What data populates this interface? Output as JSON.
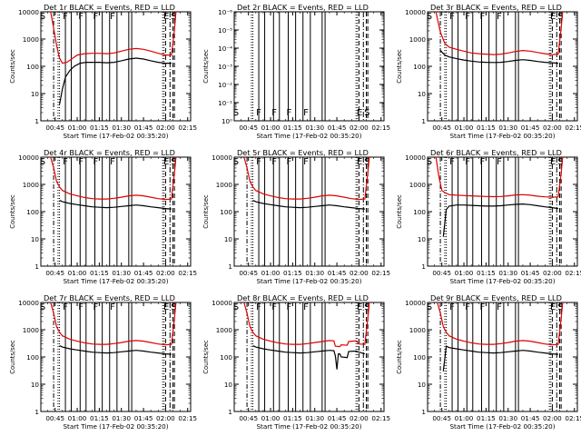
{
  "chart_data": [
    {
      "type": "line",
      "title": "Det 1r  BLACK = Events, RED = LLD",
      "xlabel": "Start Time (17-Feb-02 00:35:20)",
      "ylabel": "Counts/sec",
      "x_ticks": [
        "00:45",
        "01:00",
        "01:15",
        "01:30",
        "01:45",
        "02:00",
        "02:15"
      ],
      "y_ticks": [
        "1",
        "10",
        "100",
        "1000",
        "10000"
      ],
      "ylim": [
        1,
        10000
      ],
      "log_y": true,
      "markers": [
        "S",
        "F",
        "F",
        "F",
        "F",
        "E",
        "S"
      ],
      "series": [
        {
          "color": "#e00000",
          "x": [
            42,
            44,
            46,
            48,
            50,
            53,
            56,
            60,
            65,
            70,
            75,
            80,
            85,
            90,
            95,
            100,
            105,
            110,
            115,
            120,
            124,
            126,
            127
          ],
          "values": [
            10000,
            2500,
            600,
            200,
            130,
            140,
            180,
            260,
            290,
            300,
            300,
            290,
            310,
            360,
            420,
            450,
            420,
            360,
            300,
            260,
            260,
            2000,
            10000
          ]
        },
        {
          "color": "#000000",
          "x": [
            48,
            50,
            52,
            55,
            58,
            62,
            66,
            70,
            75,
            80,
            85,
            90,
            95,
            100,
            105,
            110,
            115,
            120,
            124
          ],
          "values": [
            4,
            15,
            40,
            70,
            100,
            130,
            140,
            140,
            140,
            135,
            140,
            160,
            185,
            200,
            185,
            160,
            140,
            130,
            130
          ]
        }
      ]
    },
    {
      "type": "line",
      "title": "Det 2r  BLACK = Events, RED = LLD",
      "xlabel": "Start Time (17-Feb-02 00:35:20)",
      "ylabel": "Counts/sec",
      "x_ticks": [
        "00:45",
        "01:00",
        "01:15",
        "01:30",
        "01:45",
        "02:00",
        "02:15"
      ],
      "y_ticks": [
        "10⁰",
        "10⁻¹",
        "10⁻²",
        "10⁻³",
        "10⁻⁴",
        "10⁻⁵",
        "10⁻⁶"
      ],
      "ylim": [
        1,
        1e-06
      ],
      "log_y": true,
      "markers": [
        "S",
        "F",
        "F",
        "F",
        "F",
        "E",
        "S"
      ],
      "series": []
    },
    {
      "type": "line",
      "title": "Det 3r  BLACK = Events, RED = LLD",
      "xlabel": "Start Time (17-Feb-02 00:35:20)",
      "ylabel": "Counts/sec",
      "x_ticks": [
        "00:45",
        "01:00",
        "01:15",
        "01:30",
        "01:45",
        "02:00",
        "02:15"
      ],
      "y_ticks": [
        "1",
        "10",
        "100",
        "1000",
        "10000"
      ],
      "ylim": [
        1,
        10000
      ],
      "log_y": true,
      "markers": [
        "S",
        "F",
        "F",
        "F",
        "F",
        "E",
        "S"
      ],
      "series": [
        {
          "color": "#e00000",
          "x": [
            41,
            44,
            47,
            50,
            55,
            60,
            65,
            70,
            75,
            80,
            85,
            90,
            95,
            100,
            105,
            110,
            115,
            120,
            124,
            126,
            127
          ],
          "values": [
            10000,
            1800,
            700,
            500,
            420,
            360,
            310,
            290,
            280,
            270,
            280,
            310,
            350,
            380,
            360,
            320,
            290,
            270,
            280,
            2500,
            10000
          ]
        },
        {
          "color": "#000000",
          "x": [
            44,
            47,
            50,
            55,
            60,
            65,
            70,
            75,
            80,
            85,
            90,
            95,
            100,
            105,
            110,
            115,
            120,
            124
          ],
          "values": [
            380,
            260,
            220,
            190,
            170,
            155,
            145,
            140,
            138,
            140,
            150,
            165,
            175,
            165,
            150,
            140,
            135,
            130
          ]
        }
      ]
    },
    {
      "type": "line",
      "title": "Det 4r  BLACK = Events, RED = LLD",
      "xlabel": "Start Time (17-Feb-02 00:35:20)",
      "ylabel": "Counts/sec",
      "x_ticks": [
        "00:45",
        "01:00",
        "01:15",
        "01:30",
        "01:45",
        "02:00",
        "02:15"
      ],
      "y_ticks": [
        "1",
        "10",
        "100",
        "1000",
        "10000"
      ],
      "ylim": [
        1,
        10000
      ],
      "log_y": true,
      "markers": [
        "S",
        "F",
        "F",
        "F",
        "F",
        "E",
        "S"
      ],
      "series": [
        {
          "color": "#e00000",
          "x": [
            42,
            44,
            46,
            48,
            50,
            55,
            60,
            65,
            70,
            75,
            80,
            85,
            90,
            95,
            100,
            105,
            110,
            115,
            120,
            124,
            126,
            127
          ],
          "values": [
            10000,
            4000,
            1300,
            800,
            600,
            450,
            380,
            330,
            300,
            290,
            290,
            310,
            340,
            380,
            400,
            380,
            340,
            300,
            280,
            290,
            2500,
            10000
          ]
        },
        {
          "color": "#000000",
          "x": [
            48,
            50,
            55,
            60,
            65,
            70,
            75,
            80,
            85,
            90,
            95,
            100,
            105,
            110,
            115,
            120,
            124
          ],
          "values": [
            260,
            230,
            200,
            180,
            165,
            150,
            145,
            140,
            145,
            155,
            165,
            175,
            165,
            150,
            140,
            130,
            125
          ]
        }
      ]
    },
    {
      "type": "line",
      "title": "Det 5r  BLACK = Events, RED = LLD",
      "xlabel": "Start Time (17-Feb-02 00:35:20)",
      "ylabel": "Counts/sec",
      "x_ticks": [
        "00:45",
        "01:00",
        "01:15",
        "01:30",
        "01:45",
        "02:00",
        "02:15"
      ],
      "y_ticks": [
        "1",
        "10",
        "100",
        "1000",
        "10000"
      ],
      "ylim": [
        1,
        10000
      ],
      "log_y": true,
      "markers": [
        "S",
        "F",
        "F",
        "F",
        "F",
        "E",
        "S"
      ],
      "series": [
        {
          "color": "#e00000",
          "x": [
            42,
            44,
            46,
            48,
            50,
            55,
            60,
            65,
            70,
            75,
            80,
            85,
            90,
            95,
            100,
            105,
            110,
            115,
            120,
            124,
            126,
            127
          ],
          "values": [
            10000,
            4000,
            1300,
            800,
            600,
            450,
            380,
            330,
            300,
            290,
            290,
            310,
            340,
            380,
            400,
            380,
            340,
            300,
            280,
            290,
            2500,
            10000
          ]
        },
        {
          "color": "#000000",
          "x": [
            48,
            50,
            55,
            60,
            65,
            70,
            75,
            80,
            85,
            90,
            95,
            100,
            105,
            110,
            115,
            120,
            124
          ],
          "values": [
            260,
            230,
            200,
            180,
            165,
            150,
            145,
            140,
            145,
            155,
            165,
            175,
            165,
            150,
            140,
            130,
            125
          ]
        }
      ]
    },
    {
      "type": "line",
      "title": "Det 6r  BLACK = Events, RED = LLD",
      "xlabel": "Start Time (17-Feb-02 00:35:20)",
      "ylabel": "Counts/sec",
      "x_ticks": [
        "00:45",
        "01:00",
        "01:15",
        "01:30",
        "01:45",
        "02:00",
        "02:15"
      ],
      "y_ticks": [
        "1",
        "10",
        "100",
        "1000",
        "10000"
      ],
      "ylim": [
        1,
        10000
      ],
      "log_y": true,
      "markers": [
        "S",
        "F",
        "F",
        "F",
        "F",
        "E",
        "S"
      ],
      "series": [
        {
          "color": "#e00000",
          "x": [
            41,
            43,
            45,
            47,
            50,
            55,
            60,
            65,
            70,
            75,
            80,
            85,
            90,
            95,
            100,
            105,
            110,
            115,
            120,
            124,
            126,
            127
          ],
          "values": [
            10000,
            2000,
            600,
            500,
            420,
            400,
            390,
            380,
            370,
            360,
            355,
            360,
            380,
            410,
            420,
            400,
            370,
            350,
            340,
            350,
            2500,
            10000
          ]
        },
        {
          "color": "#000000",
          "x": [
            46,
            48,
            50,
            55,
            60,
            65,
            70,
            75,
            80,
            85,
            90,
            95,
            100,
            105,
            110,
            115,
            120,
            124
          ],
          "values": [
            12,
            120,
            160,
            175,
            175,
            170,
            165,
            160,
            160,
            165,
            175,
            185,
            190,
            180,
            165,
            150,
            140,
            130
          ]
        }
      ]
    },
    {
      "type": "line",
      "title": "Det 7r  BLACK = Events, RED = LLD",
      "xlabel": "Start Time (17-Feb-02 00:35:20)",
      "ylabel": "Counts/sec",
      "x_ticks": [
        "00:45",
        "01:00",
        "01:15",
        "01:30",
        "01:45",
        "02:00",
        "02:15"
      ],
      "y_ticks": [
        "1",
        "10",
        "100",
        "1000",
        "10000"
      ],
      "ylim": [
        1,
        10000
      ],
      "log_y": true,
      "markers": [
        "S",
        "F",
        "F",
        "F",
        "F",
        "E",
        "S"
      ],
      "series": [
        {
          "color": "#e00000",
          "x": [
            42,
            44,
            46,
            48,
            50,
            55,
            60,
            65,
            70,
            75,
            80,
            85,
            90,
            95,
            100,
            105,
            110,
            115,
            120,
            124,
            126,
            127
          ],
          "values": [
            10000,
            4000,
            1300,
            800,
            600,
            450,
            380,
            330,
            300,
            290,
            290,
            310,
            340,
            380,
            400,
            380,
            340,
            300,
            280,
            290,
            2500,
            10000
          ]
        },
        {
          "color": "#000000",
          "x": [
            48,
            50,
            55,
            60,
            65,
            70,
            75,
            80,
            85,
            90,
            95,
            100,
            105,
            110,
            115,
            120,
            124
          ],
          "values": [
            260,
            230,
            200,
            180,
            165,
            150,
            145,
            140,
            145,
            155,
            165,
            175,
            165,
            150,
            140,
            130,
            125
          ]
        }
      ]
    },
    {
      "type": "line",
      "title": "Det 8r  BLACK = Events, RED = LLD",
      "xlabel": "Start Time (17-Feb-02 00:35:20)",
      "ylabel": "Counts/sec",
      "x_ticks": [
        "00:45",
        "01:00",
        "01:15",
        "01:30",
        "01:45",
        "02:00",
        "02:15"
      ],
      "y_ticks": [
        "1",
        "10",
        "100",
        "1000",
        "10000"
      ],
      "ylim": [
        1,
        10000
      ],
      "log_y": true,
      "markers": [
        "S",
        "F",
        "F",
        "F",
        "F",
        "E",
        "S"
      ],
      "series": [
        {
          "color": "#e00000",
          "x": [
            42,
            44,
            46,
            48,
            50,
            55,
            60,
            65,
            70,
            75,
            80,
            85,
            90,
            100,
            103,
            104,
            107,
            108,
            112,
            113,
            118,
            120,
            124,
            126,
            127
          ],
          "values": [
            10000,
            4000,
            1300,
            800,
            600,
            450,
            380,
            330,
            300,
            290,
            290,
            310,
            340,
            400,
            390,
            250,
            240,
            280,
            270,
            370,
            390,
            300,
            290,
            2500,
            10000
          ]
        },
        {
          "color": "#000000",
          "x": [
            48,
            50,
            55,
            60,
            65,
            70,
            75,
            80,
            85,
            90,
            95,
            100,
            103,
            104,
            105,
            106,
            107,
            108,
            112,
            113,
            118,
            120,
            124
          ],
          "values": [
            260,
            230,
            200,
            180,
            165,
            150,
            145,
            140,
            145,
            155,
            165,
            175,
            170,
            110,
            35,
            130,
            130,
            100,
            95,
            160,
            165,
            150,
            130
          ]
        }
      ]
    },
    {
      "type": "line",
      "title": "Det 9r  BLACK = Events, RED = LLD",
      "xlabel": "Start Time (17-Feb-02 00:35:20)",
      "ylabel": "Counts/sec",
      "x_ticks": [
        "00:45",
        "01:00",
        "01:15",
        "01:30",
        "01:45",
        "02:00",
        "02:15"
      ],
      "y_ticks": [
        "1",
        "10",
        "100",
        "1000",
        "10000"
      ],
      "ylim": [
        1,
        10000
      ],
      "log_y": true,
      "markers": [
        "S",
        "F",
        "F",
        "F",
        "F",
        "E",
        "S"
      ],
      "series": [
        {
          "color": "#e00000",
          "x": [
            42,
            44,
            46,
            48,
            50,
            55,
            60,
            65,
            70,
            75,
            80,
            85,
            90,
            95,
            100,
            105,
            110,
            115,
            120,
            124,
            126,
            127
          ],
          "values": [
            10000,
            4000,
            1300,
            800,
            600,
            450,
            380,
            330,
            300,
            290,
            290,
            310,
            340,
            380,
            400,
            380,
            340,
            300,
            280,
            290,
            2500,
            10000
          ]
        },
        {
          "color": "#000000",
          "x": [
            46,
            48,
            50,
            55,
            60,
            65,
            70,
            75,
            80,
            85,
            90,
            95,
            100,
            105,
            110,
            115,
            120,
            124
          ],
          "values": [
            30,
            250,
            220,
            200,
            180,
            165,
            150,
            145,
            140,
            145,
            155,
            165,
            175,
            165,
            150,
            140,
            130,
            125
          ]
        }
      ]
    }
  ]
}
